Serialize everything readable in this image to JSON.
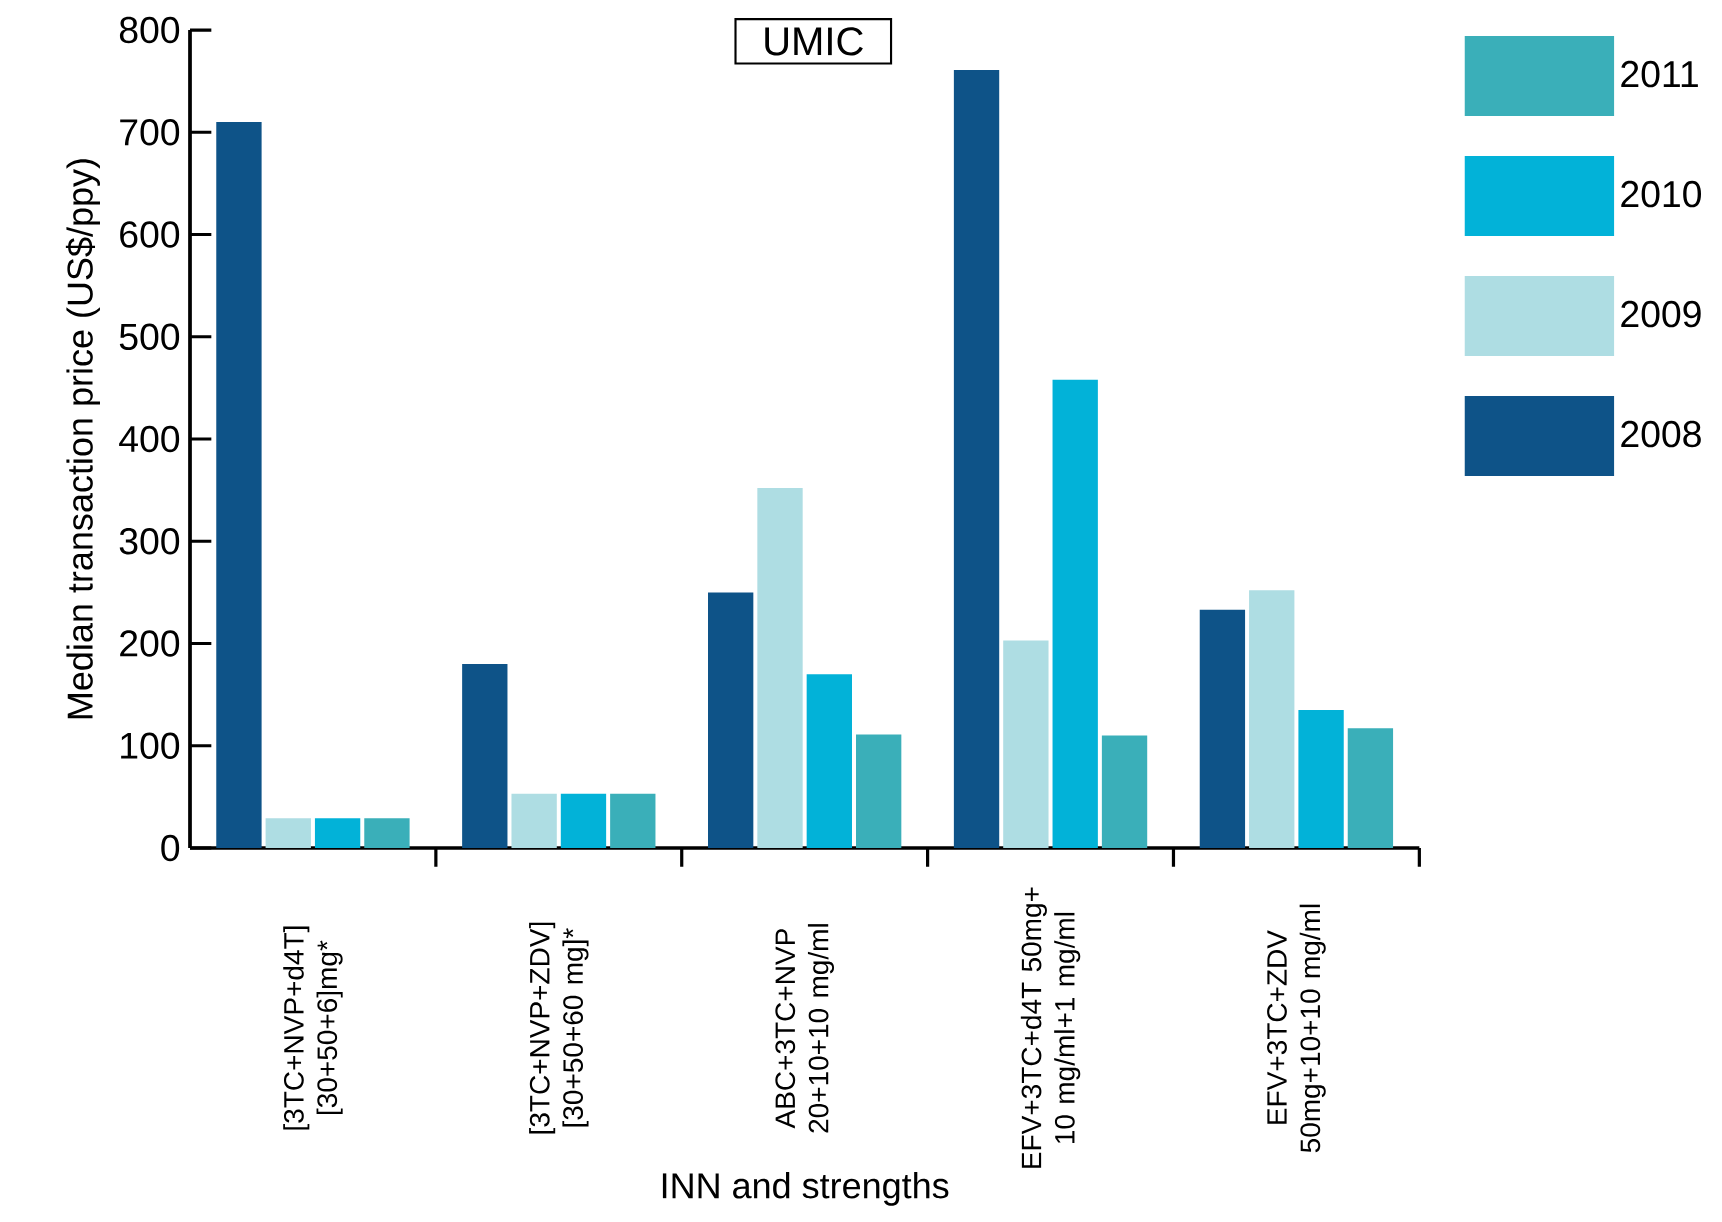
{
  "chart_data": {
    "type": "bar",
    "title": "UMIC",
    "xlabel": "INN and strengths",
    "ylabel": "Median transaction price (US$/ppy)",
    "categories": [
      "[3TC+NVP+d4T] [30+50+6]mg*",
      "[3TC+NVP+ZDV] [30+50+60 mg]*",
      "ABC+3TC+NVP 20+10+10 mg/ml",
      "EFV+3TC+d4T 50mg+ 10 mg/ml+1 mg/ml",
      "EFV+3TC+ZDV 50mg+10+10 mg/ml"
    ],
    "series": [
      {
        "name": "2008",
        "color": "#0e5388",
        "values": [
          710,
          180,
          250,
          761,
          233
        ]
      },
      {
        "name": "2009",
        "color": "#aedde3",
        "values": [
          29,
          53,
          352,
          203,
          252
        ]
      },
      {
        "name": "2010",
        "color": "#02b2d8",
        "values": [
          29,
          53,
          170,
          458,
          135
        ]
      },
      {
        "name": "2011",
        "color": "#3aafb9",
        "values": [
          29,
          53,
          111,
          110,
          117
        ]
      }
    ],
    "ylim": [
      0,
      800
    ],
    "yticks": [
      0,
      100,
      200,
      300,
      400,
      500,
      600,
      700,
      800
    ],
    "grid": false,
    "legend": "right"
  }
}
